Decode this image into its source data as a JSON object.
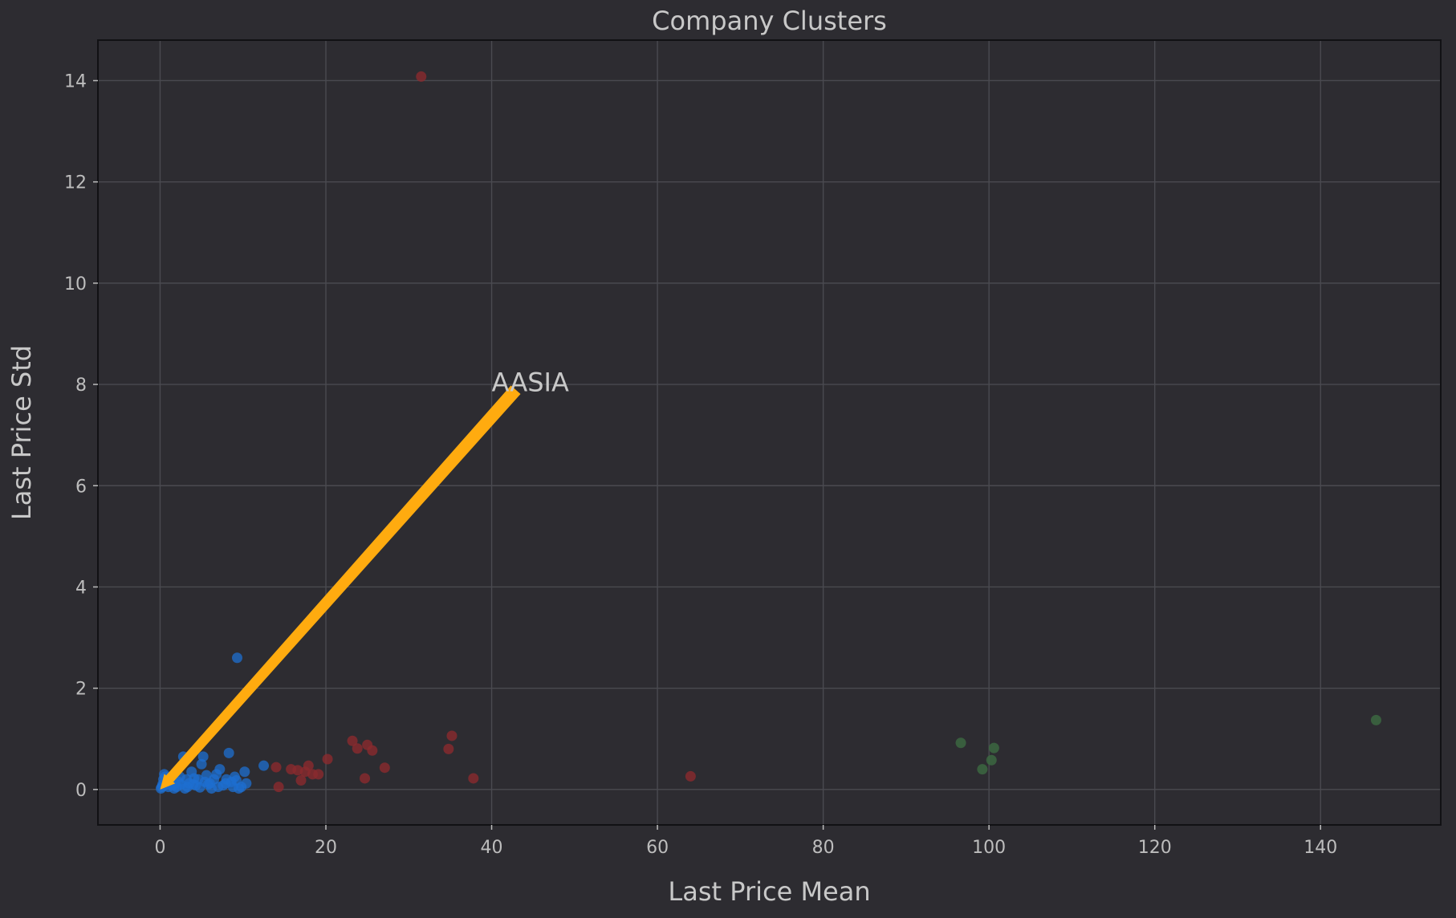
{
  "chart_data": {
    "type": "scatter",
    "title": "Company Clusters",
    "xlabel": "Last Price Mean",
    "ylabel": "Last Price Std",
    "xlim": [
      -7.5,
      154.5
    ],
    "ylim": [
      -0.7,
      14.8
    ],
    "xticks": [
      0,
      20,
      40,
      60,
      80,
      100,
      120,
      140
    ],
    "yticks": [
      0,
      2,
      4,
      6,
      8,
      10,
      12,
      14
    ],
    "grid": true,
    "background": "#2d2c31",
    "plot_background": "#2d2c31",
    "series": [
      {
        "color": "#1e6fd0",
        "points": [
          [
            0.1,
            0.02
          ],
          [
            0.2,
            0.05
          ],
          [
            0.3,
            0.1
          ],
          [
            0.4,
            0.2
          ],
          [
            0.5,
            0.3
          ],
          [
            0.6,
            0.25
          ],
          [
            0.8,
            0.15
          ],
          [
            1.0,
            0.05
          ],
          [
            1.2,
            0.1
          ],
          [
            1.5,
            0.08
          ],
          [
            1.8,
            0.12
          ],
          [
            2.0,
            0.05
          ],
          [
            2.2,
            0.15
          ],
          [
            2.5,
            0.1
          ],
          [
            2.8,
            0.65
          ],
          [
            3.0,
            0.02
          ],
          [
            3.2,
            0.2
          ],
          [
            3.5,
            0.12
          ],
          [
            3.8,
            0.35
          ],
          [
            4.0,
            0.1
          ],
          [
            4.3,
            0.08
          ],
          [
            4.6,
            0.2
          ],
          [
            5.0,
            0.5
          ],
          [
            5.2,
            0.65
          ],
          [
            5.4,
            0.15
          ],
          [
            5.8,
            0.1
          ],
          [
            6.2,
            0.02
          ],
          [
            6.5,
            0.2
          ],
          [
            6.8,
            0.3
          ],
          [
            7.2,
            0.4
          ],
          [
            7.6,
            0.08
          ],
          [
            8.0,
            0.2
          ],
          [
            8.3,
            0.72
          ],
          [
            8.6,
            0.15
          ],
          [
            9.0,
            0.25
          ],
          [
            9.3,
            2.6
          ],
          [
            9.5,
            0.02
          ],
          [
            9.8,
            0.05
          ],
          [
            10.2,
            0.35
          ],
          [
            10.4,
            0.12
          ],
          [
            12.5,
            0.47
          ],
          [
            0.5,
            0.08
          ],
          [
            1.1,
            0.2
          ],
          [
            1.7,
            0.02
          ],
          [
            2.4,
            0.25
          ],
          [
            3.3,
            0.05
          ],
          [
            4.1,
            0.22
          ],
          [
            4.8,
            0.04
          ],
          [
            5.6,
            0.28
          ],
          [
            6.0,
            0.12
          ],
          [
            7.0,
            0.05
          ],
          [
            7.9,
            0.12
          ],
          [
            8.8,
            0.05
          ],
          [
            9.2,
            0.18
          ]
        ]
      },
      {
        "color": "#8a2a2e",
        "points": [
          [
            31.5,
            14.08
          ],
          [
            14.0,
            0.44
          ],
          [
            14.3,
            0.05
          ],
          [
            15.8,
            0.4
          ],
          [
            16.6,
            0.38
          ],
          [
            17.0,
            0.18
          ],
          [
            17.5,
            0.35
          ],
          [
            17.9,
            0.47
          ],
          [
            18.4,
            0.3
          ],
          [
            19.1,
            0.3
          ],
          [
            20.2,
            0.6
          ],
          [
            23.2,
            0.96
          ],
          [
            23.8,
            0.81
          ],
          [
            24.7,
            0.22
          ],
          [
            25.0,
            0.88
          ],
          [
            25.6,
            0.77
          ],
          [
            27.1,
            0.43
          ],
          [
            34.8,
            0.8
          ],
          [
            35.2,
            1.06
          ],
          [
            37.8,
            0.22
          ],
          [
            64.0,
            0.26
          ]
        ]
      },
      {
        "color": "#3c6b42",
        "points": [
          [
            96.6,
            0.92
          ],
          [
            99.2,
            0.4
          ],
          [
            100.3,
            0.58
          ],
          [
            100.6,
            0.82
          ],
          [
            146.7,
            1.37
          ]
        ]
      }
    ],
    "annotations": [
      {
        "text": "AASIA",
        "text_xy": [
          40.0,
          7.8
        ],
        "point_xy": [
          0.0,
          0.0
        ],
        "arrow_color": "#ffab0f"
      }
    ]
  }
}
